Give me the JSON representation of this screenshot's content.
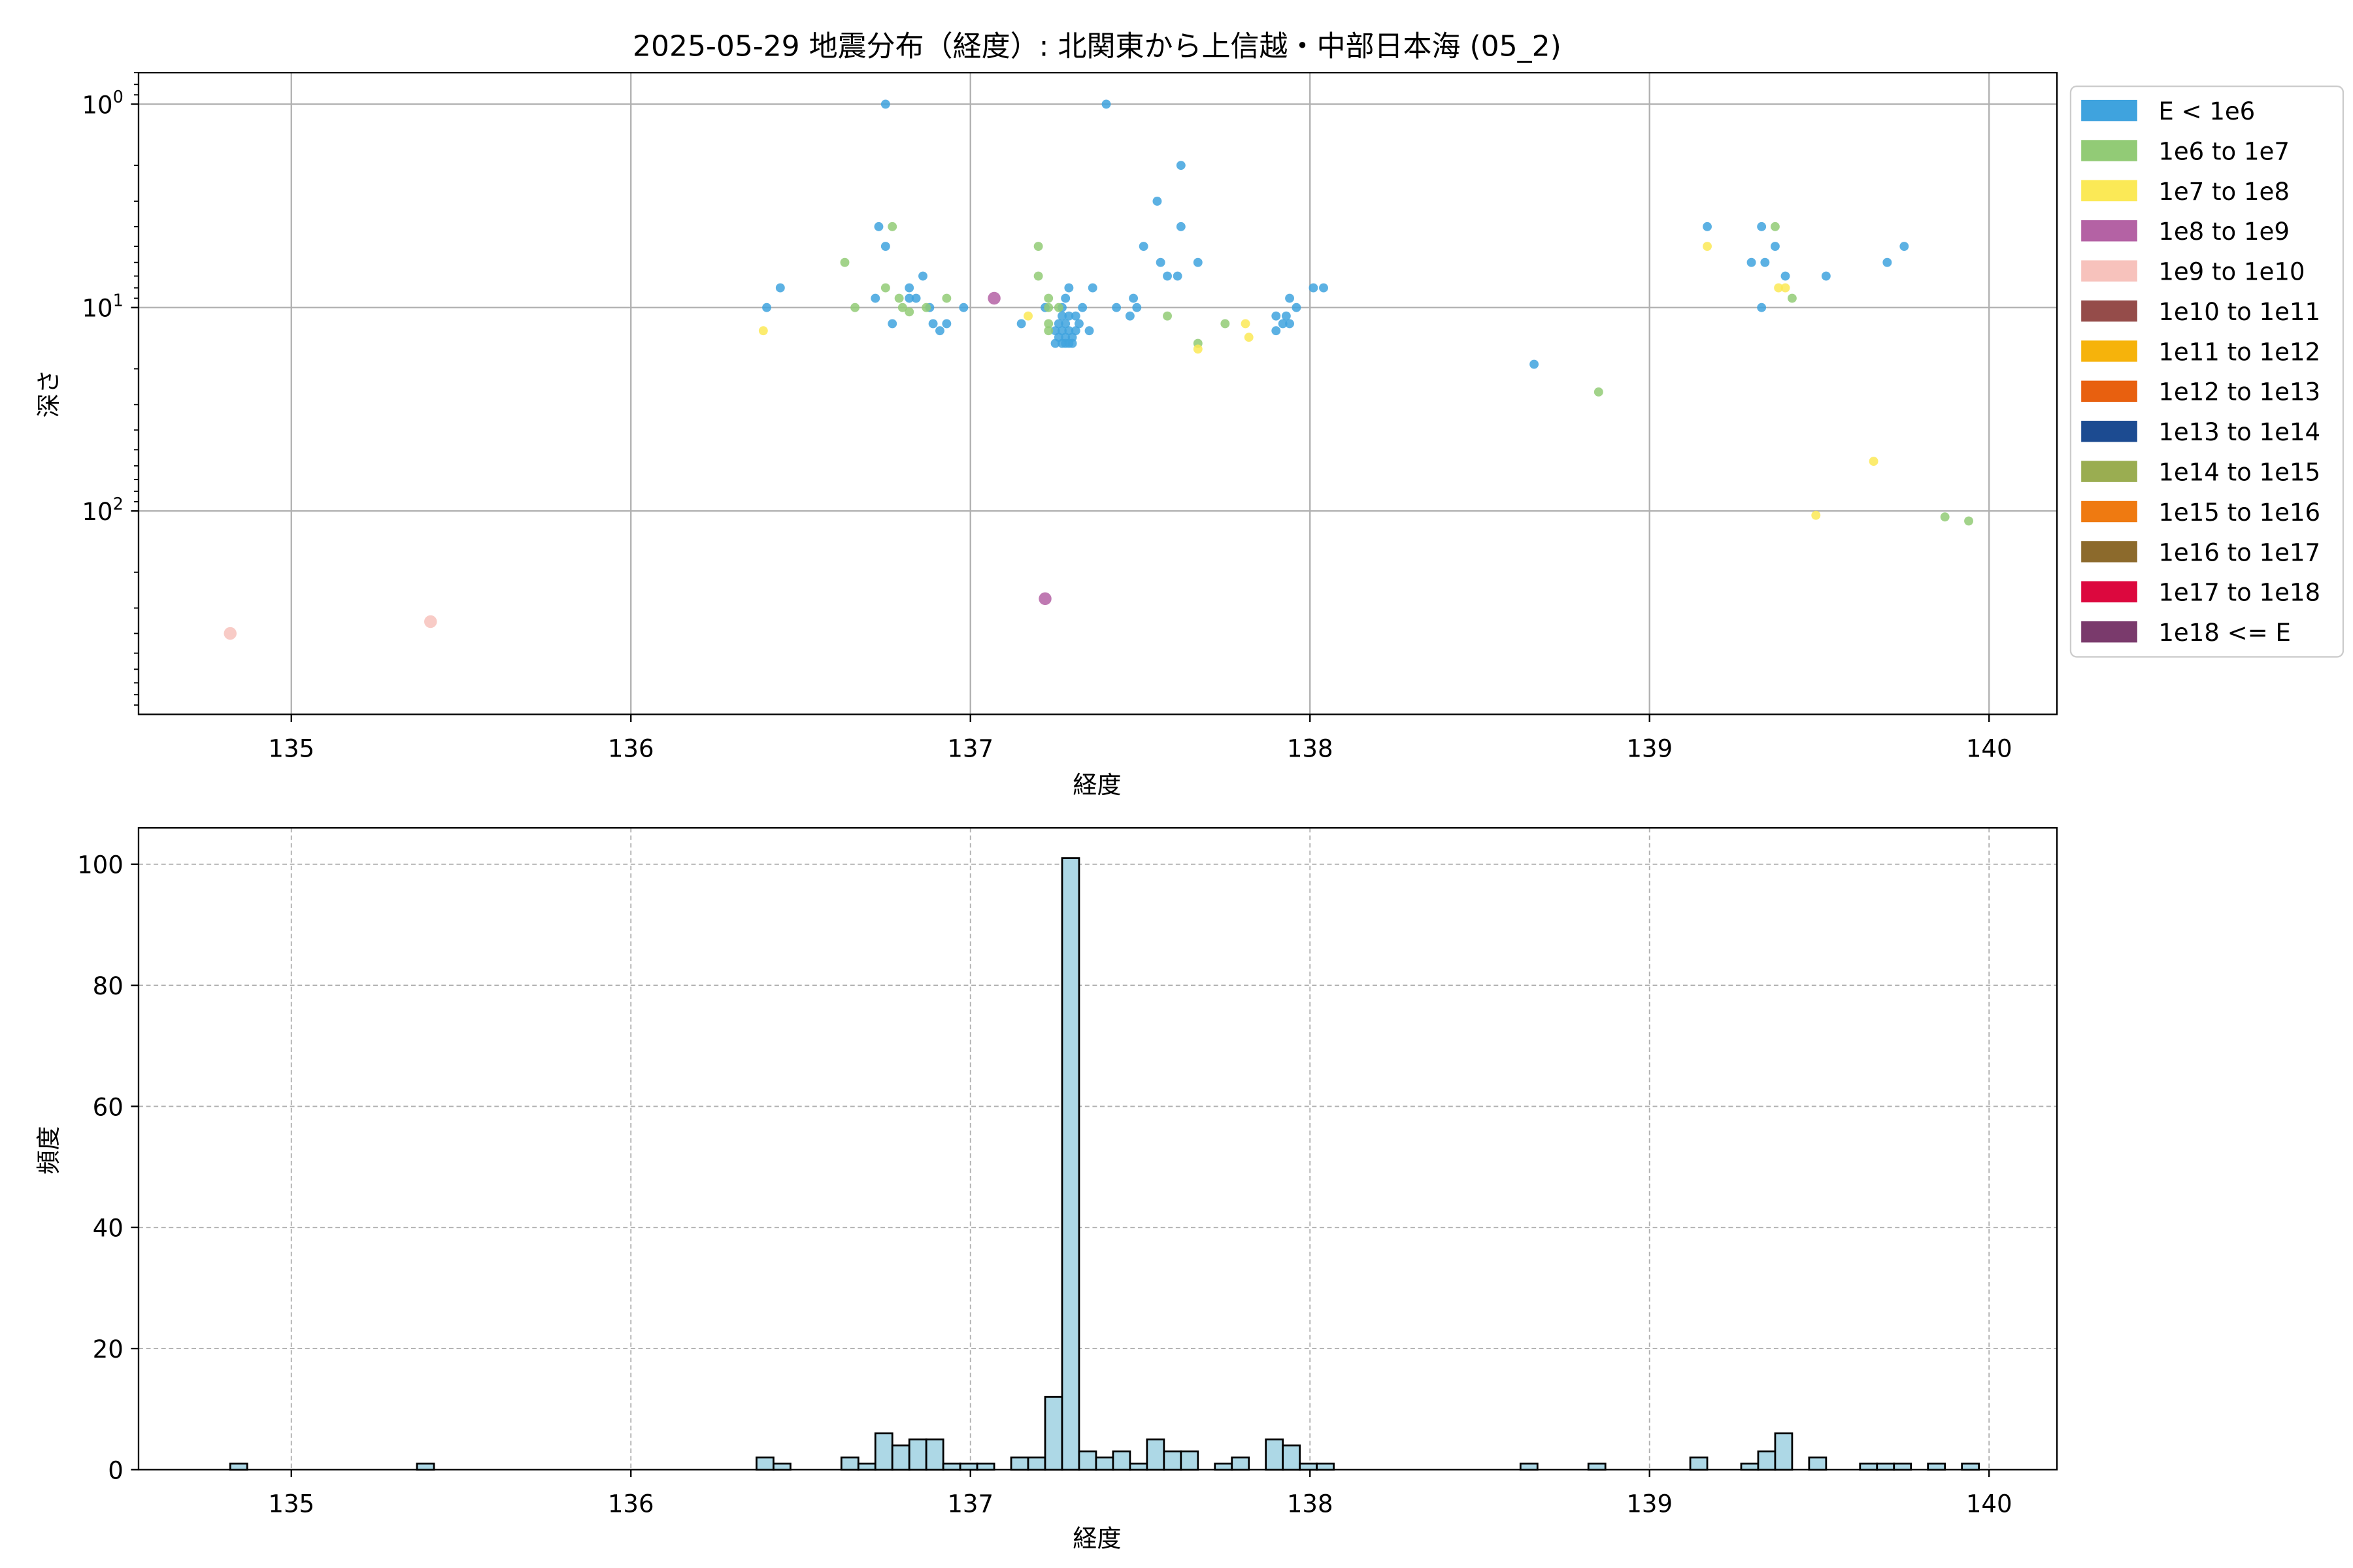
{
  "chart_data": [
    {
      "type": "scatter",
      "title": "2025-05-29 地震分布（経度）: 北関東から上信越・中部日本海 (05_2)",
      "xlabel": "経度",
      "ylabel": "深さ",
      "xlim": [
        134.55,
        140.2
      ],
      "ylim": [
        1000,
        0.7
      ],
      "yscale": "log",
      "y_inverted": true,
      "grid": true,
      "x_ticks": [
        135,
        136,
        137,
        138,
        139,
        140
      ],
      "y_ticks": [
        {
          "value": 1,
          "base": "10",
          "exp": "0"
        },
        {
          "value": 10,
          "base": "10",
          "exp": "1"
        },
        {
          "value": 100,
          "base": "10",
          "exp": "2"
        }
      ],
      "legend": {
        "position": "outside-right",
        "entries": [
          {
            "label": "E < 1e6",
            "color": "#3fa3de"
          },
          {
            "label": "1e6 to 1e7",
            "color": "#92cb76"
          },
          {
            "label": "1e7 to 1e8",
            "color": "#fbe956"
          },
          {
            "label": "1e8 to 1e9",
            "color": "#b462a4"
          },
          {
            "label": "1e9 to 1e10",
            "color": "#f7c2bc"
          },
          {
            "label": "1e10 to 1e11",
            "color": "#954c4a"
          },
          {
            "label": "1e11 to 1e12",
            "color": "#f6b30b"
          },
          {
            "label": "1e12 to 1e13",
            "color": "#e8600f"
          },
          {
            "label": "1e13 to 1e14",
            "color": "#1c4b91"
          },
          {
            "label": "1e14 to 1e15",
            "color": "#9aad51"
          },
          {
            "label": "1e15 to 1e16",
            "color": "#ef7a11"
          },
          {
            "label": "1e16 to 1e17",
            "color": "#8c6a2c"
          },
          {
            "label": "1e17 to 1e18",
            "color": "#dc083e"
          },
          {
            "label": "1e18 <= E",
            "color": "#7a3a6c"
          }
        ]
      },
      "series": [
        {
          "class": 0,
          "points": [
            [
              136.75,
              1.0
            ],
            [
              137.4,
              1.0
            ],
            [
              137.62,
              2.0
            ],
            [
              137.55,
              3.0
            ],
            [
              136.73,
              4.0
            ],
            [
              137.62,
              4.0
            ],
            [
              139.17,
              4.0
            ],
            [
              139.33,
              4.0
            ],
            [
              136.75,
              5.0
            ],
            [
              137.51,
              5.0
            ],
            [
              139.37,
              5.0
            ],
            [
              139.75,
              5.0
            ],
            [
              137.56,
              6.0
            ],
            [
              137.67,
              6.0
            ],
            [
              139.3,
              6.0
            ],
            [
              139.34,
              6.0
            ],
            [
              139.7,
              6.0
            ],
            [
              137.58,
              7.0
            ],
            [
              137.61,
              7.0
            ],
            [
              136.86,
              7.0
            ],
            [
              139.4,
              7.0
            ],
            [
              139.52,
              7.0
            ],
            [
              136.44,
              8.0
            ],
            [
              136.82,
              8.0
            ],
            [
              137.29,
              8.0
            ],
            [
              137.36,
              8.0
            ],
            [
              138.01,
              8.0
            ],
            [
              138.04,
              8.0
            ],
            [
              136.72,
              9.0
            ],
            [
              136.82,
              9.0
            ],
            [
              136.84,
              9.0
            ],
            [
              137.28,
              9.0
            ],
            [
              137.48,
              9.0
            ],
            [
              137.94,
              9.0
            ],
            [
              136.4,
              10.0
            ],
            [
              136.88,
              10.0
            ],
            [
              136.98,
              10.0
            ],
            [
              137.22,
              10.0
            ],
            [
              137.27,
              10.0
            ],
            [
              137.33,
              10.0
            ],
            [
              137.43,
              10.0
            ],
            [
              137.49,
              10.0
            ],
            [
              137.96,
              10.0
            ],
            [
              139.33,
              10.0
            ],
            [
              137.27,
              11.0
            ],
            [
              137.29,
              11.0
            ],
            [
              137.31,
              11.0
            ],
            [
              137.47,
              11.0
            ],
            [
              137.9,
              11.0
            ],
            [
              137.93,
              11.0
            ],
            [
              136.77,
              12.0
            ],
            [
              136.89,
              12.0
            ],
            [
              136.93,
              12.0
            ],
            [
              137.15,
              12.0
            ],
            [
              137.26,
              12.0
            ],
            [
              137.28,
              12.0
            ],
            [
              137.32,
              12.0
            ],
            [
              137.92,
              12.0
            ],
            [
              137.94,
              12.0
            ],
            [
              136.91,
              13.0
            ],
            [
              137.25,
              13.0
            ],
            [
              137.27,
              13.0
            ],
            [
              137.29,
              13.0
            ],
            [
              137.31,
              13.0
            ],
            [
              137.35,
              13.0
            ],
            [
              137.9,
              13.0
            ],
            [
              137.26,
              14.0
            ],
            [
              137.28,
              14.0
            ],
            [
              137.3,
              14.0
            ],
            [
              137.25,
              15.0
            ],
            [
              137.29,
              15.0
            ],
            [
              137.27,
              15.0
            ],
            [
              137.3,
              15.0
            ],
            [
              137.28,
              15.0
            ],
            [
              138.66,
              19.0
            ]
          ]
        },
        {
          "class": 1,
          "points": [
            [
              136.77,
              4.0
            ],
            [
              137.2,
              5.0
            ],
            [
              139.37,
              4.0
            ],
            [
              136.63,
              6.0
            ],
            [
              137.2,
              7.0
            ],
            [
              136.75,
              8.0
            ],
            [
              136.79,
              9.0
            ],
            [
              136.93,
              9.0
            ],
            [
              137.23,
              9.0
            ],
            [
              139.42,
              9.0
            ],
            [
              136.66,
              10.0
            ],
            [
              136.8,
              10.0
            ],
            [
              136.82,
              10.5
            ],
            [
              136.87,
              10.0
            ],
            [
              137.23,
              10.0
            ],
            [
              137.26,
              10.0
            ],
            [
              137.58,
              11.0
            ],
            [
              137.23,
              12.0
            ],
            [
              137.75,
              12.0
            ],
            [
              137.23,
              13.0
            ],
            [
              137.67,
              15.0
            ],
            [
              138.85,
              26.0
            ],
            [
              139.87,
              107.0
            ],
            [
              139.94,
              112.0
            ]
          ]
        },
        {
          "class": 2,
          "points": [
            [
              136.39,
              13.0
            ],
            [
              137.17,
              11.0
            ],
            [
              137.81,
              12.0
            ],
            [
              137.82,
              14.0
            ],
            [
              137.67,
              16.0
            ],
            [
              139.17,
              5.0
            ],
            [
              139.38,
              8.0
            ],
            [
              139.4,
              8.0
            ],
            [
              139.66,
              57.0
            ],
            [
              139.49,
              105.0
            ]
          ]
        },
        {
          "class": 3,
          "points": [
            [
              137.07,
              9.0
            ],
            [
              137.22,
              270.0
            ]
          ]
        },
        {
          "class": 4,
          "points": [
            [
              134.82,
              400.0
            ],
            [
              135.41,
              350.0
            ]
          ]
        }
      ]
    },
    {
      "type": "bar",
      "xlabel": "経度",
      "ylabel": "頻度",
      "xlim": [
        134.55,
        140.2
      ],
      "ylim": [
        0,
        106
      ],
      "grid": true,
      "x_ticks": [
        135,
        136,
        137,
        138,
        139,
        140
      ],
      "y_ticks": [
        0,
        20,
        40,
        60,
        80,
        100
      ],
      "bar_color": "#add8e6",
      "bin_width": 0.05,
      "bins": [
        [
          134.82,
          1
        ],
        [
          135.37,
          1
        ],
        [
          136.37,
          2
        ],
        [
          136.42,
          1
        ],
        [
          136.62,
          2
        ],
        [
          136.67,
          1
        ],
        [
          136.72,
          6
        ],
        [
          136.77,
          4
        ],
        [
          136.82,
          5
        ],
        [
          136.87,
          5
        ],
        [
          136.92,
          1
        ],
        [
          136.97,
          1
        ],
        [
          137.02,
          1
        ],
        [
          137.12,
          2
        ],
        [
          137.17,
          2
        ],
        [
          137.22,
          12
        ],
        [
          137.27,
          101
        ],
        [
          137.32,
          3
        ],
        [
          137.37,
          2
        ],
        [
          137.42,
          3
        ],
        [
          137.47,
          1
        ],
        [
          137.52,
          5
        ],
        [
          137.57,
          3
        ],
        [
          137.62,
          3
        ],
        [
          137.72,
          1
        ],
        [
          137.77,
          2
        ],
        [
          137.87,
          5
        ],
        [
          137.92,
          4
        ],
        [
          137.97,
          1
        ],
        [
          138.02,
          1
        ],
        [
          138.62,
          1
        ],
        [
          138.82,
          1
        ],
        [
          139.12,
          2
        ],
        [
          139.27,
          1
        ],
        [
          139.32,
          3
        ],
        [
          139.37,
          6
        ],
        [
          139.47,
          2
        ],
        [
          139.62,
          1
        ],
        [
          139.67,
          1
        ],
        [
          139.72,
          1
        ],
        [
          139.82,
          1
        ],
        [
          139.92,
          1
        ]
      ]
    }
  ]
}
